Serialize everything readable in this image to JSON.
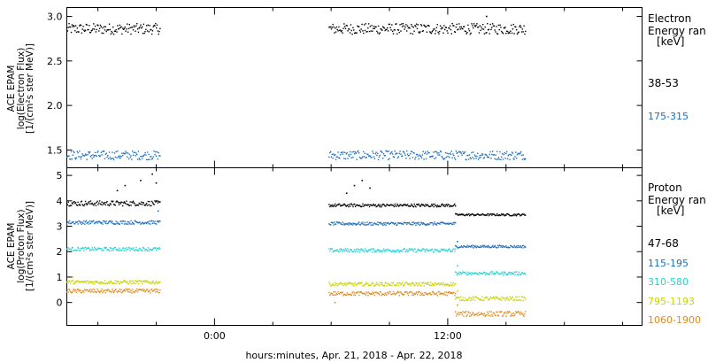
{
  "chart_data": [
    {
      "type": "scatter",
      "panel": "electron",
      "ylabel": [
        "ACE EPAM",
        "log(Electron Flux)",
        "[1/(cm²s ster MeV)]"
      ],
      "ylim": [
        1.3,
        3.1
      ],
      "y_ticks": [
        1.5,
        2.0,
        2.5,
        3.0
      ],
      "y_tick_labels": [
        "1.5",
        "2.0",
        "2.5",
        "3.0"
      ],
      "legend_title": [
        "Electron",
        "Energy ran",
        "[keV]"
      ],
      "legend_placement": "right",
      "series": [
        {
          "name": "38-53",
          "color": "#000000",
          "segments": [
            {
              "x": [
                -7.6,
                -2.8
              ],
              "level": 2.86,
              "amp": 0.06
            },
            {
              "x": [
                5.9,
                16.0
              ],
              "level": 2.86,
              "amp": 0.06
            }
          ],
          "spikes": [
            {
              "x": 14.0,
              "y": 3.0
            }
          ]
        },
        {
          "name": "175-315",
          "color": "#1a6fc0",
          "segments": [
            {
              "x": [
                -7.6,
                -2.8
              ],
              "level": 1.44,
              "amp": 0.05
            },
            {
              "x": [
                5.9,
                16.0
              ],
              "level": 1.44,
              "amp": 0.05
            }
          ],
          "spikes": []
        }
      ]
    },
    {
      "type": "scatter",
      "panel": "proton",
      "ylabel": [
        "ACE EPAM",
        "log(Proton Flux)",
        "[1/(cm²s ster MeV)]"
      ],
      "ylim": [
        -0.9,
        5.3
      ],
      "y_ticks": [
        0,
        1,
        2,
        3,
        4,
        5
      ],
      "y_tick_labels": [
        "0",
        "1",
        "2",
        "3",
        "4",
        "5"
      ],
      "x_ticks": [
        0,
        12
      ],
      "x_tick_labels": [
        "0:00",
        "12:00"
      ],
      "xlabel": "hours:minutes, Apr. 21, 2018 - Apr. 22, 2018",
      "xlim": [
        -7.6,
        22.0
      ],
      "legend_title": [
        "Proton",
        "Energy ran",
        "[keV]"
      ],
      "legend_placement": "right",
      "series": [
        {
          "name": "47-68",
          "color": "#000000",
          "segments": [
            {
              "x": [
                -7.6,
                -2.8
              ],
              "level": 3.9,
              "amp": 0.1
            },
            {
              "x": [
                5.9,
                12.4
              ],
              "level": 3.82,
              "amp": 0.06
            },
            {
              "x": [
                12.4,
                16.0
              ],
              "level": 3.45,
              "amp": 0.04
            }
          ],
          "spikes": [
            {
              "x": -5.0,
              "y": 4.4
            },
            {
              "x": -4.6,
              "y": 4.6
            },
            {
              "x": -3.8,
              "y": 4.8
            },
            {
              "x": -3.2,
              "y": 5.05
            },
            {
              "x": -3.0,
              "y": 4.7
            },
            {
              "x": 7.2,
              "y": 4.6
            },
            {
              "x": 7.6,
              "y": 4.8
            },
            {
              "x": 8.0,
              "y": 4.5
            },
            {
              "x": 6.8,
              "y": 4.3
            }
          ]
        },
        {
          "name": "115-195",
          "color": "#1a6fc0",
          "segments": [
            {
              "x": [
                -7.6,
                -2.8
              ],
              "level": 3.15,
              "amp": 0.07
            },
            {
              "x": [
                5.9,
                12.4
              ],
              "level": 3.1,
              "amp": 0.06
            },
            {
              "x": [
                12.4,
                16.0
              ],
              "level": 2.2,
              "amp": 0.05
            }
          ],
          "spikes": [
            {
              "x": -2.9,
              "y": 3.6
            },
            {
              "x": 12.5,
              "y": 2.4
            }
          ]
        },
        {
          "name": "310-580",
          "color": "#22d4d4",
          "segments": [
            {
              "x": [
                -7.6,
                -2.8
              ],
              "level": 2.1,
              "amp": 0.07
            },
            {
              "x": [
                5.9,
                12.4
              ],
              "level": 2.05,
              "amp": 0.07
            },
            {
              "x": [
                12.4,
                16.0
              ],
              "level": 1.15,
              "amp": 0.06
            }
          ],
          "spikes": [
            {
              "x": 12.5,
              "y": 1.45
            }
          ]
        },
        {
          "name": "795-1193",
          "color": "#c8d400",
          "segments": [
            {
              "x": [
                -7.6,
                -2.8
              ],
              "level": 0.8,
              "amp": 0.07
            },
            {
              "x": [
                5.9,
                12.4
              ],
              "level": 0.72,
              "amp": 0.07
            },
            {
              "x": [
                12.4,
                16.0
              ],
              "level": 0.15,
              "amp": 0.08
            }
          ],
          "spikes": [
            {
              "x": -7.3,
              "y": 1.0
            },
            {
              "x": 12.5,
              "y": 0.45
            }
          ]
        },
        {
          "name": "1060-1900",
          "color": "#e08a1e",
          "segments": [
            {
              "x": [
                -7.6,
                -2.8
              ],
              "level": 0.45,
              "amp": 0.08
            },
            {
              "x": [
                5.9,
                12.4
              ],
              "level": 0.35,
              "amp": 0.08
            },
            {
              "x": [
                12.4,
                16.0
              ],
              "level": -0.45,
              "amp": 0.1
            }
          ],
          "spikes": [
            {
              "x": 6.2,
              "y": 0.0
            },
            {
              "x": 12.5,
              "y": -0.1
            }
          ]
        }
      ]
    }
  ]
}
